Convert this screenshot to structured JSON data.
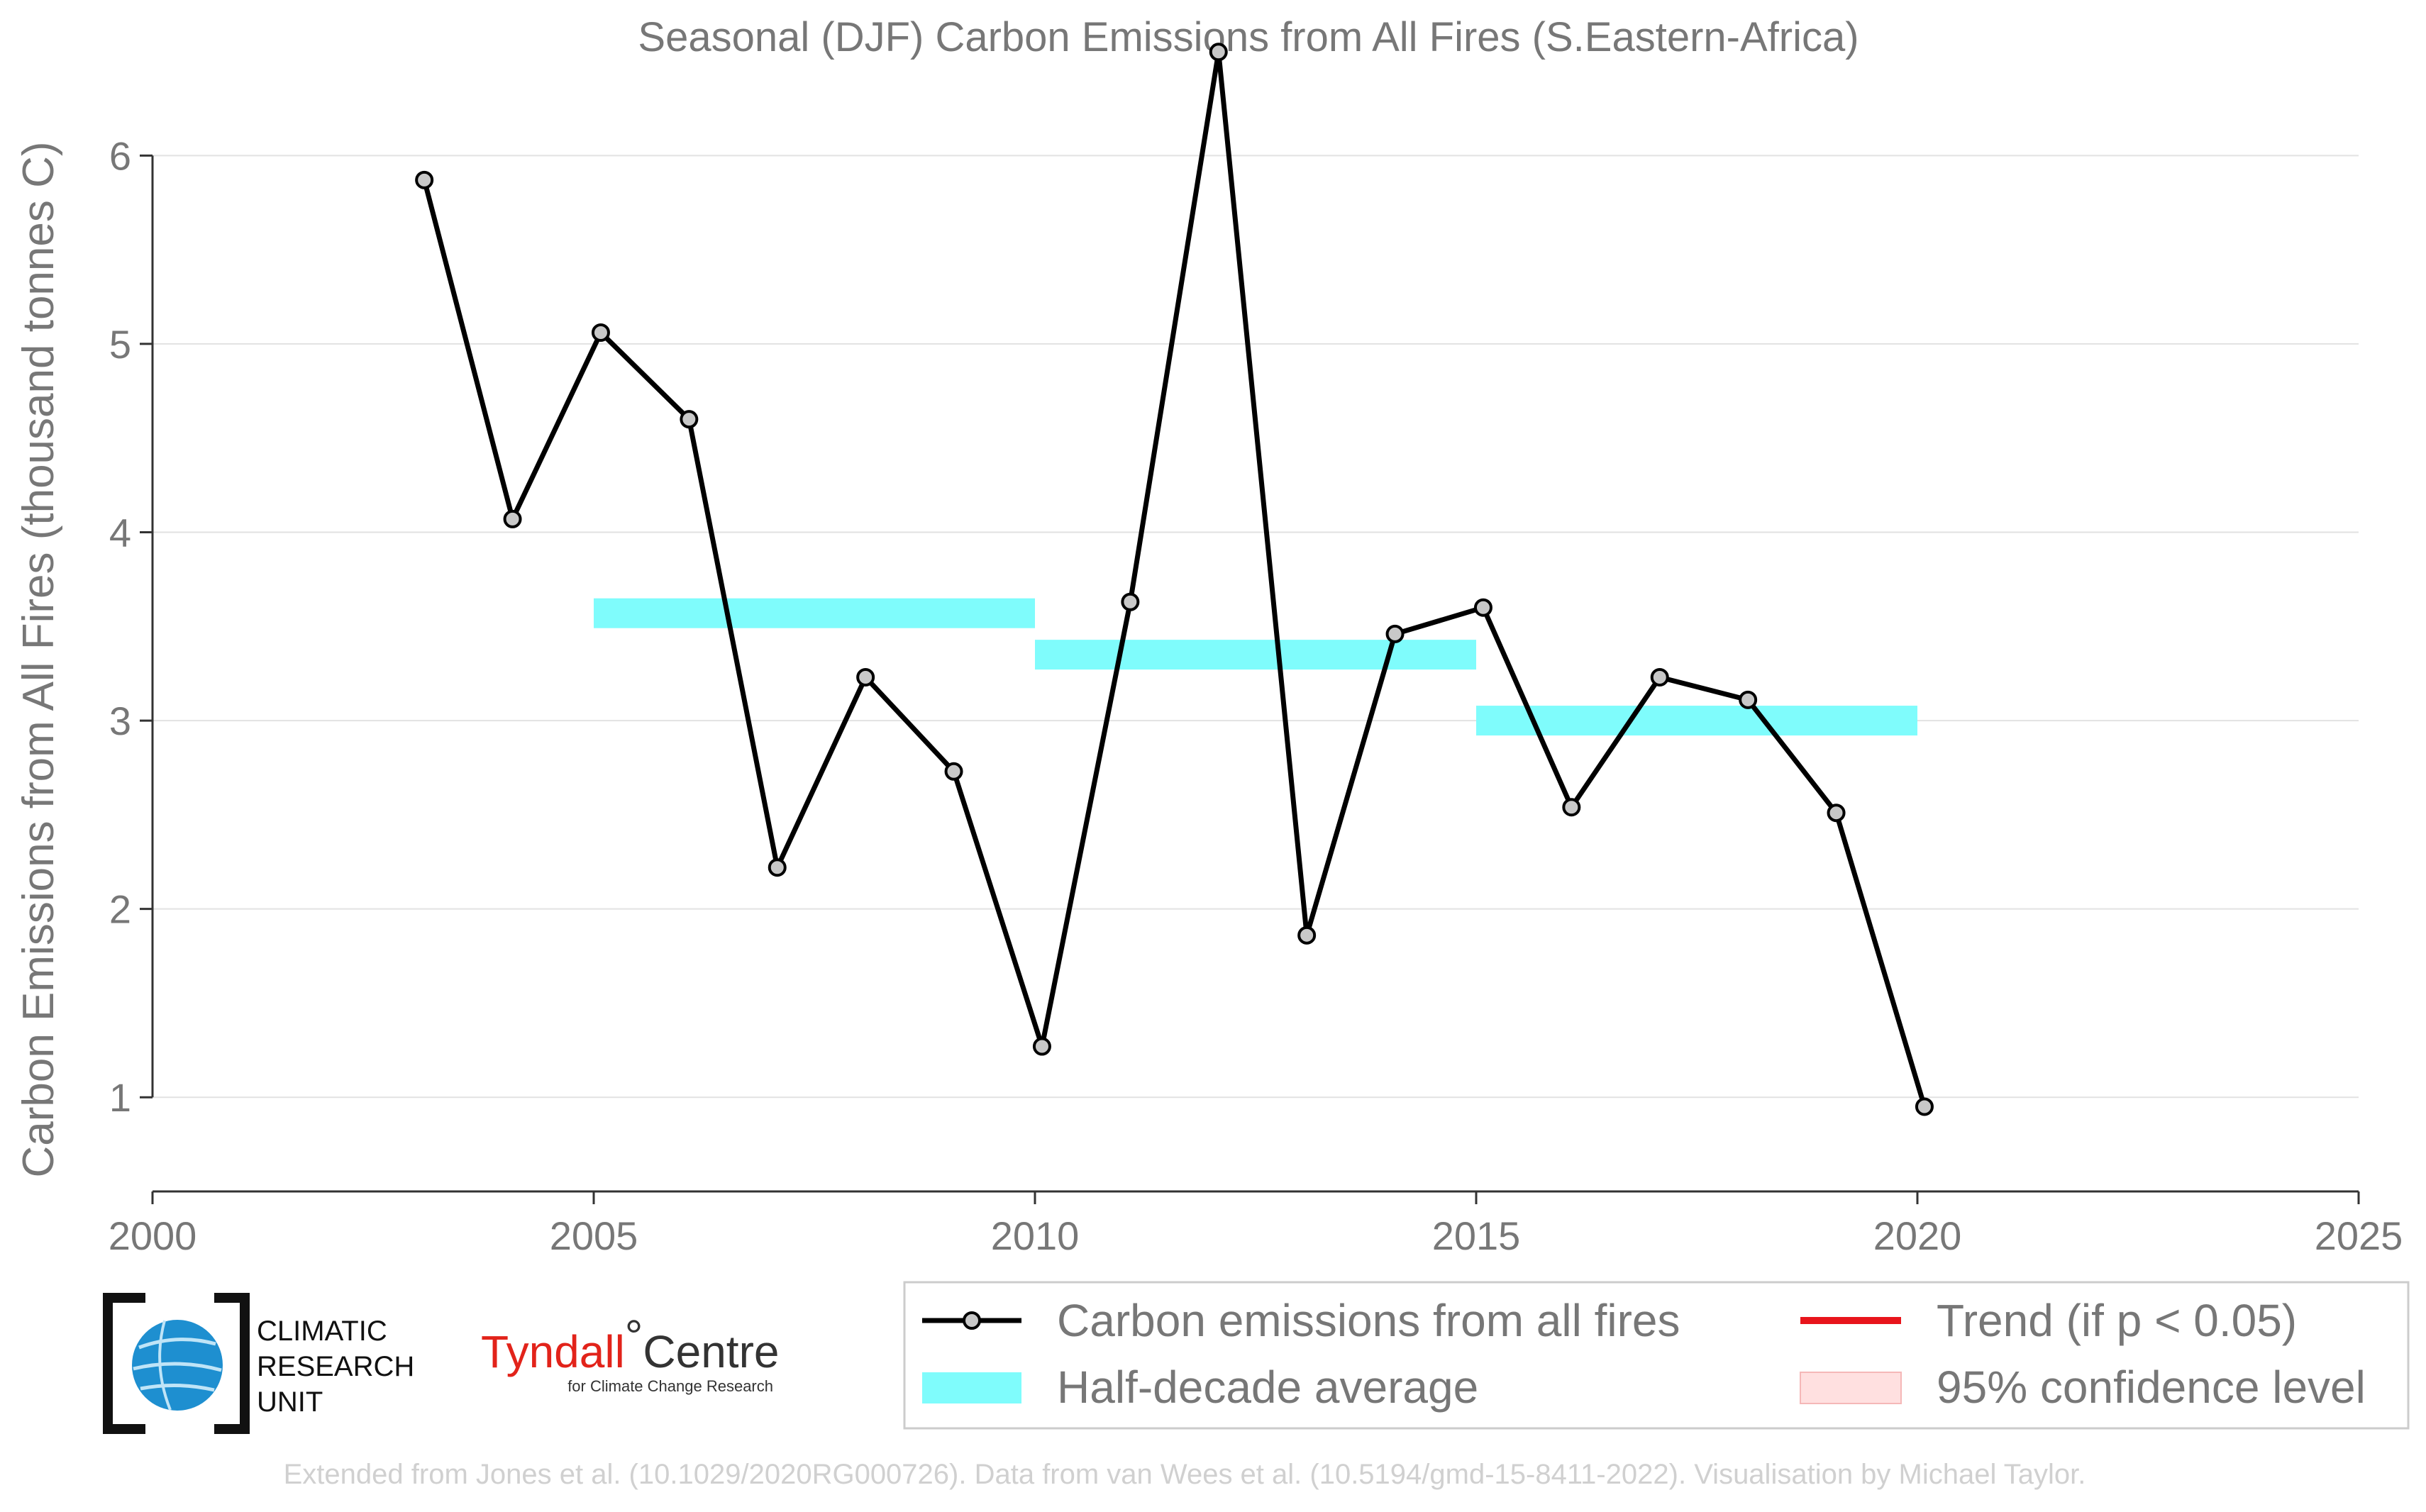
{
  "colors": {
    "series": "#000000",
    "marker_fill": "#c8c8c8",
    "half_decade": "#7ffcfc",
    "trend": "#e8141b",
    "confidence": "#ffe0e0",
    "grid": "#e2e2e2",
    "text": "#777777",
    "logo_blue": "#1e8fd0",
    "tyndall_red": "#e2231a"
  },
  "logos": {
    "cru": {
      "line1": "CLIMATIC",
      "line2": "RESEARCH",
      "line3": "UNIT",
      "icon": "globe-icon"
    },
    "tyndall": {
      "name_a": "Tyndall",
      "degree": "°",
      "name_b": "Centre",
      "tagline": "for Climate Change Research"
    }
  },
  "footer": "Extended from Jones et al. (10.1029/2020RG000726). Data from van Wees et al. (10.5194/gmd-15-8411-2022). Visualisation by Michael Taylor.",
  "chart_data": {
    "type": "line",
    "title": "Seasonal (DJF) Carbon Emissions from All Fires (S.Eastern-Africa)",
    "xlabel": "",
    "ylabel": "Carbon Emissions from All Fires (thousand tonnes C)",
    "xlim": [
      2000,
      2025
    ],
    "ylim": [
      0.5,
      6.6
    ],
    "xticks": [
      2000,
      2005,
      2010,
      2015,
      2020,
      2025
    ],
    "yticks": [
      1,
      2,
      3,
      4,
      5,
      6
    ],
    "grid": "horizontal",
    "legend_position": "bottom",
    "series": [
      {
        "name": "Carbon emissions from all fires",
        "x": [
          2003,
          2004,
          2005,
          2006,
          2007,
          2008,
          2009,
          2010,
          2011,
          2012,
          2013,
          2014,
          2015,
          2016,
          2017,
          2018,
          2019,
          2020
        ],
        "values": [
          5.87,
          4.07,
          5.06,
          4.6,
          2.22,
          3.23,
          2.73,
          1.27,
          3.63,
          6.55,
          1.86,
          3.46,
          3.6,
          2.54,
          3.23,
          3.11,
          2.51,
          0.95
        ]
      }
    ],
    "half_decade_average": {
      "name": "Half-decade average",
      "segments": [
        {
          "start": 2005,
          "end": 2010,
          "value": 3.57
        },
        {
          "start": 2010,
          "end": 2015,
          "value": 3.35
        },
        {
          "start": 2015,
          "end": 2020,
          "value": 3.0
        }
      ]
    },
    "legend": [
      {
        "label": "Carbon emissions from all fires",
        "kind": "line-marker"
      },
      {
        "label": "Trend (if p < 0.05)",
        "kind": "line-red"
      },
      {
        "label": "Half-decade average",
        "kind": "band-cyan"
      },
      {
        "label": "95% confidence level",
        "kind": "band-pink"
      }
    ]
  }
}
